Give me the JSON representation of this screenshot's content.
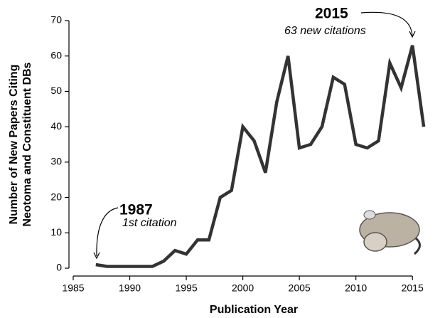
{
  "chart_data": {
    "type": "line",
    "y_label_lines": [
      "Number of New Papers Citing",
      "Neotoma and Constituent DBs"
    ],
    "x_label": "Publication Year",
    "annotations": [
      {
        "title": "1987",
        "text": "1st citation"
      },
      {
        "title": "2015",
        "text": "63 new citations"
      }
    ],
    "x": [
      1987,
      1988,
      1989,
      1990,
      1991,
      1992,
      1993,
      1994,
      1995,
      1996,
      1997,
      1998,
      1999,
      2000,
      2001,
      2002,
      2003,
      2004,
      2005,
      2006,
      2007,
      2008,
      2009,
      2010,
      2011,
      2012,
      2013,
      2014,
      2015,
      2016
    ],
    "values": [
      1,
      0.5,
      0.5,
      0.5,
      0.5,
      0.5,
      2,
      5,
      4,
      8,
      8,
      20,
      22,
      40,
      36,
      27,
      47,
      60,
      34,
      35,
      40,
      54,
      52,
      35,
      34,
      36,
      58,
      51,
      63,
      40
    ],
    "color": "#333333",
    "xlim": [
      1985,
      2017
    ],
    "xticks": [
      1985,
      1990,
      1995,
      2000,
      2005,
      2010,
      2015
    ],
    "ylim": [
      0,
      70
    ],
    "yticks": [
      0,
      10,
      20,
      30,
      40,
      50,
      60,
      70
    ]
  }
}
